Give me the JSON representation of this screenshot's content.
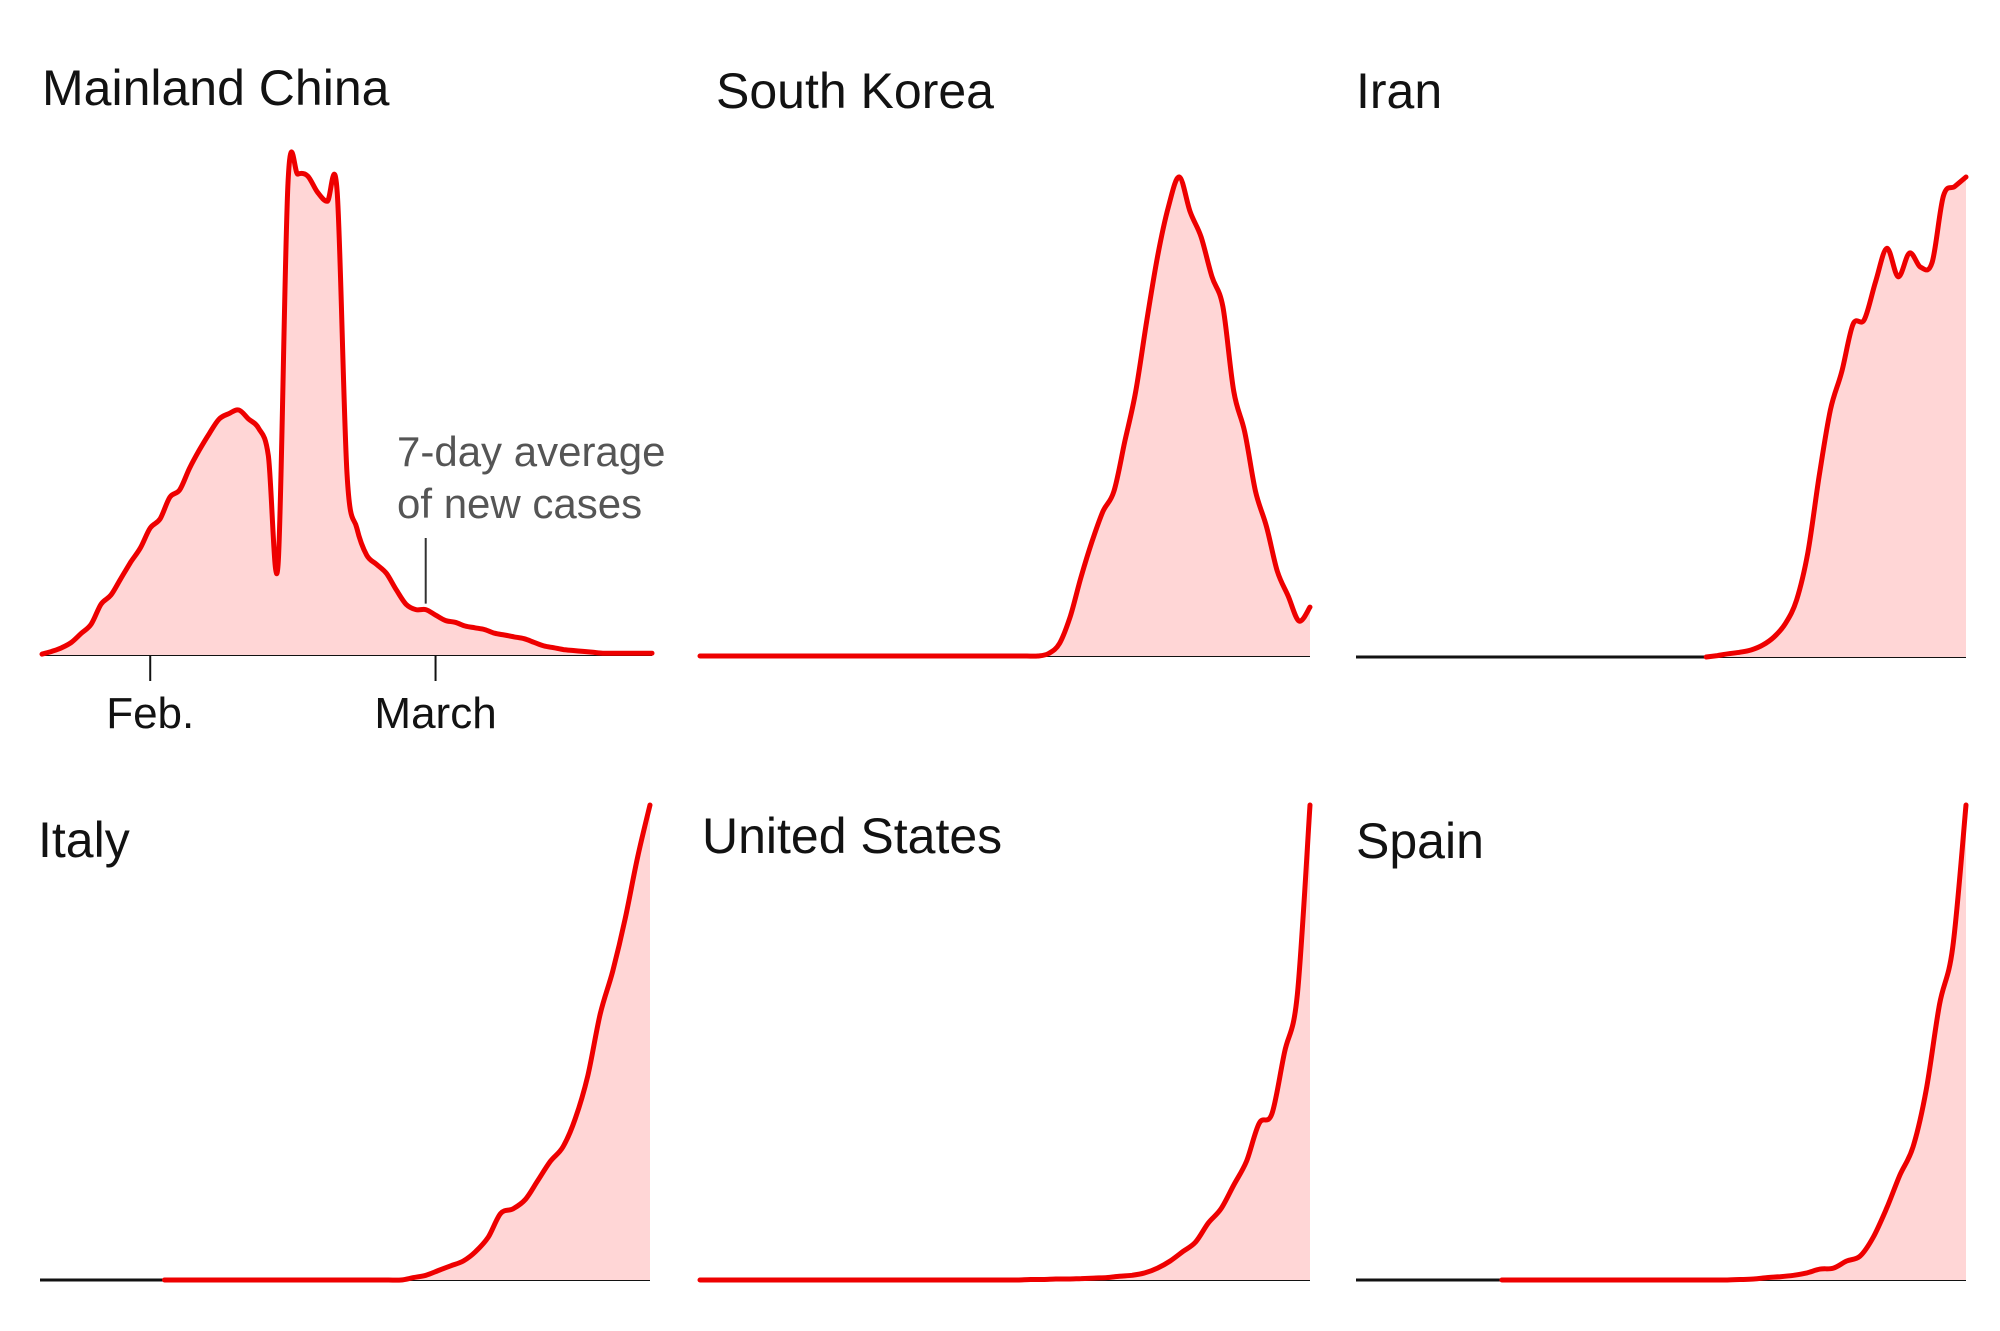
{
  "chart_data": [
    {
      "type": "area",
      "title": "Mainland China",
      "x_start": "2020-01-21",
      "xticks": [
        {
          "label": "Feb.",
          "x": "2020-02-01"
        },
        {
          "label": "March",
          "x": "2020-03-01"
        }
      ],
      "annotation": {
        "lines": [
          "7-day average",
          "of new cases"
        ],
        "x": "2020-02-29"
      },
      "series": [
        {
          "values": [
            0.5,
            2,
            4,
            7,
            12,
            17,
            28,
            33,
            42,
            51,
            59,
            70,
            75,
            87,
            91,
            103,
            113,
            122,
            130,
            133,
            135,
            130,
            125,
            110,
            50,
            260,
            265,
            264,
            255,
            250,
            255,
            100,
            70,
            55,
            50,
            45,
            36,
            28,
            25,
            25,
            22,
            19,
            18,
            16,
            15,
            14,
            12,
            11,
            10,
            9,
            7,
            5,
            4,
            3,
            2.5,
            2,
            1.5,
            1,
            1,
            1,
            1,
            1,
            1
          ]
        }
      ]
    },
    {
      "type": "area",
      "title": "South Korea",
      "x_start": "2020-01-21",
      "series": [
        {
          "values": [
            0,
            0,
            0,
            0,
            0,
            0,
            0,
            0,
            0,
            0,
            0,
            0,
            0,
            0,
            0,
            0,
            0,
            0,
            0,
            0,
            0,
            0,
            0,
            0,
            0,
            0,
            0,
            0,
            0,
            0,
            0,
            0,
            0.5,
            2.5,
            8,
            16,
            23,
            29,
            33,
            43,
            53,
            67,
            80,
            90,
            96,
            89,
            84,
            76,
            70,
            53,
            45,
            33,
            26,
            17,
            12,
            7,
            9.8
          ]
        }
      ]
    },
    {
      "type": "area",
      "title": "Iran",
      "x_start": "2020-01-21",
      "series": [
        {
          "values": [
            null,
            null,
            null,
            null,
            null,
            null,
            null,
            null,
            null,
            null,
            null,
            null,
            null,
            null,
            null,
            null,
            null,
            null,
            null,
            null,
            null,
            null,
            null,
            null,
            null,
            null,
            null,
            null,
            null,
            null,
            null,
            0,
            0.3,
            0.7,
            1,
            1.5,
            2.5,
            4.2,
            7,
            12,
            22,
            38,
            52,
            60,
            70,
            71,
            79,
            86,
            80,
            85,
            82,
            83,
            97,
            99,
            101
          ]
        }
      ]
    },
    {
      "type": "area",
      "title": "Italy",
      "x_start": "2020-01-21",
      "series": [
        {
          "values": [
            null,
            null,
            null,
            null,
            null,
            null,
            null,
            null,
            null,
            null,
            0,
            0,
            0,
            0,
            0,
            0,
            0,
            0,
            0,
            0,
            0,
            0,
            0,
            0,
            0,
            0,
            0,
            0,
            0,
            0,
            0.5,
            1,
            2,
            3,
            4,
            6,
            9,
            14,
            15,
            17,
            21,
            25,
            28,
            34,
            43,
            56,
            65,
            76,
            89,
            100
          ]
        }
      ]
    },
    {
      "type": "area",
      "title": "United States",
      "x_start": "2020-01-21",
      "series": [
        {
          "values": [
            0,
            0,
            0,
            0,
            0,
            0,
            0,
            0,
            0,
            0,
            0,
            0,
            0,
            0,
            0,
            0,
            0,
            0,
            0,
            0,
            0,
            0,
            0,
            0,
            0,
            0,
            0.1,
            0.1,
            0.2,
            0.2,
            0.3,
            0.4,
            0.5,
            0.8,
            1,
            1.5,
            2.5,
            4,
            6,
            8,
            12,
            15,
            20,
            25,
            33,
            35,
            48,
            60,
            100
          ]
        }
      ]
    },
    {
      "type": "area",
      "title": "Spain",
      "x_start": "2020-01-21",
      "series": [
        {
          "values": [
            null,
            null,
            null,
            null,
            null,
            null,
            null,
            null,
            null,
            null,
            null,
            0,
            0,
            0,
            0,
            0,
            0,
            0,
            0,
            0,
            0,
            0,
            0,
            0,
            0,
            0,
            0,
            0,
            0,
            0.1,
            0.2,
            0.5,
            0.7,
            1,
            1.5,
            2.3,
            2.5,
            4,
            5,
            9,
            15,
            22,
            28,
            40,
            58,
            70,
            100
          ]
        }
      ]
    }
  ]
}
